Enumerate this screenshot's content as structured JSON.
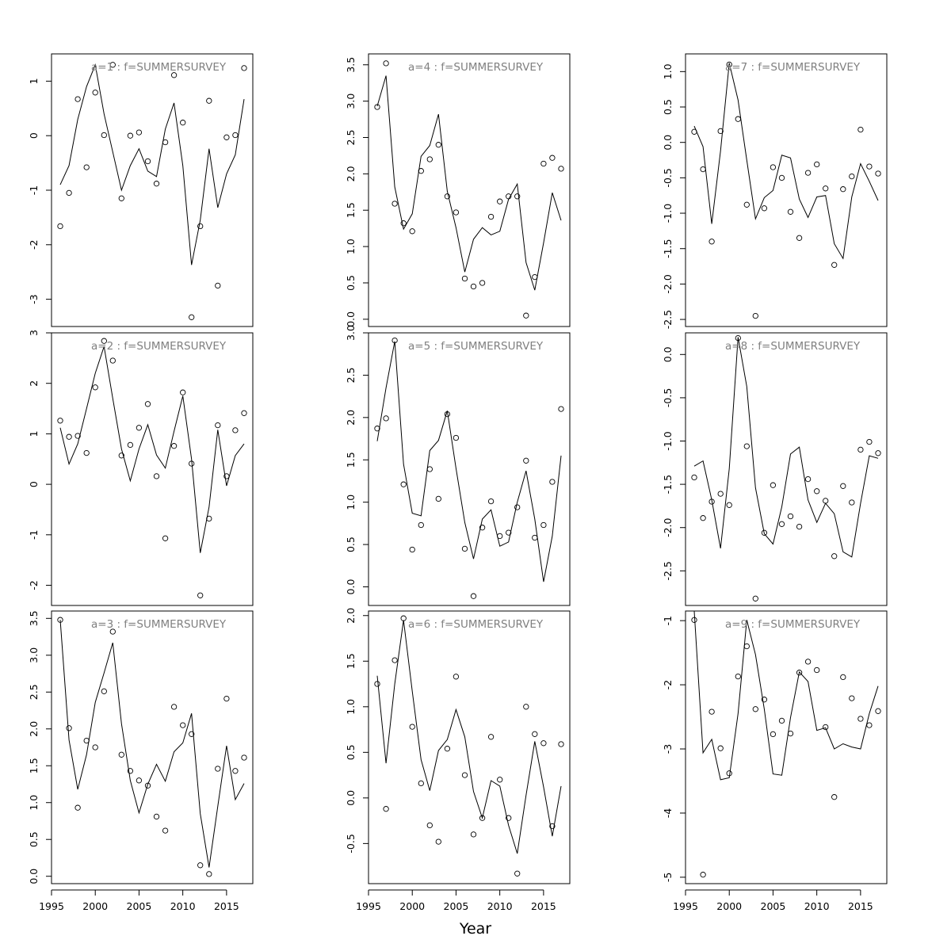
{
  "figure": {
    "xlabel": "Year"
  },
  "chart_data": [
    {
      "type": "scatter",
      "title": "a=1 : f=SUMMERSURVEY",
      "xlim": [
        1995,
        2018
      ],
      "ylim": [
        -3.5,
        1.5
      ],
      "yticks": [
        "-3",
        "-2",
        "-1",
        "0",
        "1"
      ],
      "x": [
        1996,
        1997,
        1998,
        1999,
        2000,
        2001,
        2002,
        2003,
        2004,
        2005,
        2006,
        2007,
        2008,
        2009,
        2010,
        2011,
        2012,
        2013,
        2014,
        2015,
        2016,
        2017
      ],
      "series": [
        {
          "name": "",
          "kind": "points",
          "values": [
            -1.66,
            -1.05,
            0.67,
            -0.58,
            0.79,
            0.01,
            1.3,
            -1.15,
            0.0,
            0.06,
            -0.47,
            -0.88,
            -0.12,
            1.11,
            0.24,
            -3.33,
            -1.66,
            0.64,
            -2.75,
            -0.03,
            0.01,
            1.24
          ]
        },
        {
          "name": "",
          "kind": "line",
          "values": [
            -0.9,
            -0.55,
            0.3,
            0.9,
            1.3,
            0.4,
            -0.3,
            -1.0,
            -0.55,
            -0.24,
            -0.65,
            -0.75,
            0.12,
            0.6,
            -0.55,
            -2.37,
            -1.55,
            -0.24,
            -1.32,
            -0.7,
            -0.35,
            0.67
          ]
        }
      ]
    },
    {
      "type": "scatter",
      "title": "a=2 : f=SUMMERSURVEY",
      "xlim": [
        1995,
        2018
      ],
      "ylim": [
        -2.4,
        3.0
      ],
      "yticks": [
        "-2",
        "-1",
        "0",
        "1",
        "2",
        "3"
      ],
      "x": [
        1996,
        1997,
        1998,
        1999,
        2000,
        2001,
        2002,
        2003,
        2004,
        2005,
        2006,
        2007,
        2008,
        2009,
        2010,
        2011,
        2012,
        2013,
        2014,
        2015,
        2016,
        2017
      ],
      "series": [
        {
          "name": "",
          "kind": "points",
          "values": [
            1.26,
            0.94,
            0.96,
            0.62,
            1.92,
            2.84,
            2.45,
            0.57,
            0.78,
            1.12,
            1.59,
            0.16,
            -1.07,
            0.76,
            1.82,
            0.41,
            -2.2,
            -0.68,
            1.17,
            0.16,
            1.07,
            1.41
          ]
        },
        {
          "name": "",
          "kind": "line",
          "values": [
            1.12,
            0.4,
            0.8,
            1.5,
            2.2,
            2.73,
            1.7,
            0.7,
            0.07,
            0.7,
            1.18,
            0.58,
            0.32,
            1.05,
            1.75,
            0.5,
            -1.36,
            -0.45,
            1.08,
            -0.03,
            0.57,
            0.8
          ]
        }
      ]
    },
    {
      "type": "scatter",
      "title": "a=3 : f=SUMMERSURVEY",
      "xlim": [
        1995,
        2018
      ],
      "ylim": [
        -0.1,
        3.6
      ],
      "yticks": [
        "0.0",
        "0.5",
        "1.0",
        "1.5",
        "2.0",
        "2.5",
        "3.0",
        "3.5"
      ],
      "x": [
        1996,
        1997,
        1998,
        1999,
        2000,
        2001,
        2002,
        2003,
        2004,
        2005,
        2006,
        2007,
        2008,
        2009,
        2010,
        2011,
        2012,
        2013,
        2014,
        2015,
        2016,
        2017
      ],
      "series": [
        {
          "name": "",
          "kind": "points",
          "values": [
            3.48,
            2.01,
            0.93,
            1.84,
            1.75,
            2.51,
            3.32,
            1.65,
            1.43,
            1.3,
            1.23,
            0.81,
            0.62,
            2.3,
            2.05,
            1.93,
            0.15,
            0.03,
            1.46,
            2.41,
            1.43,
            1.61
          ]
        },
        {
          "name": "",
          "kind": "line",
          "values": [
            3.48,
            1.85,
            1.18,
            1.65,
            2.36,
            2.76,
            3.17,
            2.07,
            1.3,
            0.86,
            1.25,
            1.52,
            1.29,
            1.69,
            1.81,
            2.21,
            0.85,
            0.12,
            0.95,
            1.77,
            1.04,
            1.26
          ]
        }
      ]
    },
    {
      "type": "scatter",
      "title": "a=4 : f=SUMMERSURVEY",
      "xlim": [
        1995,
        2018
      ],
      "ylim": [
        -0.1,
        3.65
      ],
      "yticks": [
        "0.0",
        "0.5",
        "1.0",
        "1.5",
        "2.0",
        "2.5",
        "3.0",
        "3.5"
      ],
      "x": [
        1996,
        1997,
        1998,
        1999,
        2000,
        2001,
        2002,
        2003,
        2004,
        2005,
        2006,
        2007,
        2008,
        2009,
        2010,
        2011,
        2012,
        2013,
        2014,
        2015,
        2016,
        2017
      ],
      "series": [
        {
          "name": "",
          "kind": "points",
          "values": [
            2.92,
            3.52,
            1.59,
            1.32,
            1.21,
            2.04,
            2.2,
            2.4,
            1.69,
            1.47,
            0.56,
            0.45,
            0.5,
            1.41,
            1.62,
            1.69,
            1.69,
            0.05,
            0.58,
            2.14,
            2.22,
            2.07
          ]
        },
        {
          "name": "",
          "kind": "line",
          "values": [
            2.93,
            3.35,
            1.82,
            1.24,
            1.45,
            2.24,
            2.39,
            2.82,
            1.76,
            1.26,
            0.65,
            1.1,
            1.26,
            1.16,
            1.21,
            1.65,
            1.86,
            0.78,
            0.4,
            1.05,
            1.74,
            1.36
          ]
        }
      ]
    },
    {
      "type": "scatter",
      "title": "a=5 : f=SUMMERSURVEY",
      "xlim": [
        1995,
        2018
      ],
      "ylim": [
        -0.22,
        3.0
      ],
      "yticks": [
        "0.0",
        "0.5",
        "1.0",
        "1.5",
        "2.0",
        "2.5",
        "3.0"
      ],
      "x": [
        1996,
        1997,
        1998,
        1999,
        2000,
        2001,
        2002,
        2003,
        2004,
        2005,
        2006,
        2007,
        2008,
        2009,
        2010,
        2011,
        2012,
        2013,
        2014,
        2015,
        2016,
        2017
      ],
      "series": [
        {
          "name": "",
          "kind": "points",
          "values": [
            1.87,
            1.99,
            2.91,
            1.21,
            0.44,
            0.73,
            1.39,
            1.04,
            2.04,
            1.76,
            0.45,
            -0.11,
            0.7,
            1.01,
            0.6,
            0.64,
            0.94,
            1.49,
            0.58,
            0.73,
            1.24,
            2.1
          ]
        },
        {
          "name": "",
          "kind": "line",
          "values": [
            1.72,
            2.35,
            2.9,
            1.45,
            0.87,
            0.84,
            1.61,
            1.73,
            2.08,
            1.4,
            0.76,
            0.33,
            0.8,
            0.91,
            0.48,
            0.53,
            1.0,
            1.37,
            0.8,
            0.06,
            0.6,
            1.55
          ]
        }
      ]
    },
    {
      "type": "scatter",
      "title": "a=6 : f=SUMMERSURVEY",
      "xlim": [
        1995,
        2018
      ],
      "ylim": [
        -0.94,
        2.05
      ],
      "yticks": [
        "-0.5",
        "0.0",
        "0.5",
        "1.0",
        "1.5",
        "2.0"
      ],
      "x": [
        1996,
        1997,
        1998,
        1999,
        2000,
        2001,
        2002,
        2003,
        2004,
        2005,
        2006,
        2007,
        2008,
        2009,
        2010,
        2011,
        2012,
        2013,
        2014,
        2015,
        2016,
        2017
      ],
      "series": [
        {
          "name": "",
          "kind": "points",
          "values": [
            1.25,
            -0.12,
            1.51,
            1.97,
            0.78,
            0.16,
            -0.3,
            -0.48,
            0.54,
            1.33,
            0.25,
            -0.4,
            -0.22,
            0.67,
            0.2,
            -0.22,
            -0.83,
            1.0,
            0.7,
            0.6,
            -0.31,
            0.59
          ]
        },
        {
          "name": "",
          "kind": "line",
          "values": [
            1.34,
            0.38,
            1.25,
            1.95,
            1.17,
            0.42,
            0.08,
            0.52,
            0.64,
            0.97,
            0.67,
            0.07,
            -0.22,
            0.19,
            0.13,
            -0.3,
            -0.61,
            0.03,
            0.62,
            0.12,
            -0.42,
            0.13
          ]
        }
      ]
    },
    {
      "type": "scatter",
      "title": "a=7 : f=SUMMERSURVEY",
      "xlim": [
        1995,
        2018
      ],
      "ylim": [
        -2.6,
        1.25
      ],
      "yticks": [
        "-2.5",
        "-2.0",
        "-1.5",
        "-1.0",
        "-0.5",
        "0.0",
        "0.5",
        "1.0"
      ],
      "x": [
        1996,
        1997,
        1998,
        1999,
        2000,
        2001,
        2002,
        2003,
        2004,
        2005,
        2006,
        2007,
        2008,
        2009,
        2010,
        2011,
        2012,
        2013,
        2014,
        2015,
        2016,
        2017
      ],
      "series": [
        {
          "name": "",
          "kind": "points",
          "values": [
            0.15,
            -0.38,
            -1.4,
            0.16,
            1.1,
            0.33,
            -0.88,
            -2.45,
            -0.93,
            -0.35,
            -0.5,
            -0.98,
            -1.35,
            -0.43,
            -0.31,
            -0.65,
            -1.73,
            -0.66,
            -0.48,
            0.18,
            -0.34,
            -0.44
          ]
        },
        {
          "name": "",
          "kind": "line",
          "values": [
            0.23,
            -0.06,
            -1.15,
            -0.12,
            1.12,
            0.6,
            -0.25,
            -1.08,
            -0.78,
            -0.68,
            -0.18,
            -0.22,
            -0.8,
            -1.06,
            -0.77,
            -0.75,
            -1.43,
            -1.64,
            -0.77,
            -0.3,
            -0.55,
            -0.82
          ]
        }
      ]
    },
    {
      "type": "scatter",
      "title": "a=8 : f=SUMMERSURVEY",
      "xlim": [
        1995,
        2018
      ],
      "ylim": [
        -2.9,
        0.25
      ],
      "yticks": [
        "-2.5",
        "-2.0",
        "-1.5",
        "-1.0",
        "-0.5",
        "0.0"
      ],
      "x": [
        1996,
        1997,
        1998,
        1999,
        2000,
        2001,
        2002,
        2003,
        2004,
        2005,
        2006,
        2007,
        2008,
        2009,
        2010,
        2011,
        2012,
        2013,
        2014,
        2015,
        2016,
        2017
      ],
      "series": [
        {
          "name": "",
          "kind": "points",
          "values": [
            -1.42,
            -1.89,
            -1.7,
            -1.61,
            -1.74,
            0.19,
            -1.06,
            -2.82,
            -2.06,
            -1.51,
            -1.96,
            -1.87,
            -1.99,
            -1.44,
            -1.58,
            -1.69,
            -2.33,
            -1.52,
            -1.71,
            -1.1,
            -1.01,
            -1.14
          ]
        },
        {
          "name": "",
          "kind": "line",
          "values": [
            -1.29,
            -1.23,
            -1.68,
            -2.24,
            -1.32,
            0.2,
            -0.37,
            -1.54,
            -2.07,
            -2.19,
            -1.76,
            -1.15,
            -1.07,
            -1.68,
            -1.94,
            -1.72,
            -1.84,
            -2.28,
            -2.34,
            -1.72,
            -1.17,
            -1.2
          ]
        }
      ]
    },
    {
      "type": "scatter",
      "title": "a=9 : f=SUMMERSURVEY",
      "xlim": [
        1995,
        2018
      ],
      "ylim": [
        -5.1,
        -0.85
      ],
      "yticks": [
        "-5",
        "-4",
        "-3",
        "-2",
        "-1"
      ],
      "x": [
        1996,
        1997,
        1998,
        1999,
        2000,
        2001,
        2002,
        2003,
        2004,
        2005,
        2006,
        2007,
        2008,
        2009,
        2010,
        2011,
        2012,
        2013,
        2014,
        2015,
        2016,
        2017
      ],
      "series": [
        {
          "name": "",
          "kind": "points",
          "values": [
            -0.99,
            -4.96,
            -2.42,
            -2.99,
            -3.38,
            -1.87,
            -1.4,
            -2.38,
            -2.23,
            -2.77,
            -2.56,
            -2.76,
            -1.81,
            -1.64,
            -1.77,
            -2.66,
            -3.75,
            -1.88,
            -2.21,
            -2.53,
            -2.63,
            -2.41
          ]
        },
        {
          "name": "",
          "kind": "line",
          "values": [
            -0.85,
            -3.06,
            -2.85,
            -3.48,
            -3.45,
            -2.45,
            -0.99,
            -1.53,
            -2.38,
            -3.39,
            -3.41,
            -2.51,
            -1.8,
            -1.95,
            -2.71,
            -2.67,
            -3.0,
            -2.92,
            -2.97,
            -3.0,
            -2.45,
            -2.02
          ]
        }
      ]
    }
  ]
}
